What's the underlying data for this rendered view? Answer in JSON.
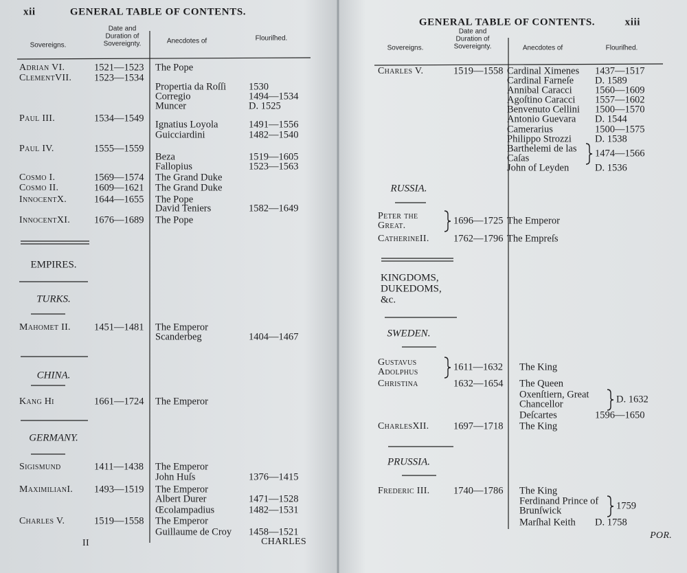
{
  "left_page": {
    "page_number": "xii",
    "running_head": "GENERAL TABLE OF CONTENTS.",
    "columns": [
      "Sovereigns.",
      [
        "Date and",
        "Duration of",
        "Sovereignty."
      ],
      "Anecdotes of",
      "Flouriſhed."
    ],
    "rows": [
      {
        "sovereign": "Adrian VI.",
        "date": "1521—1523",
        "anecdote": "The Pope"
      },
      {
        "sovereign": "ClementVII.",
        "date": "1523—1534"
      },
      {
        "anecdote": "Propertia da Roſſi",
        "flourished": "1530"
      },
      {
        "anecdote": "Corregio",
        "flourished": "1494—1534"
      },
      {
        "anecdote": "Muncer",
        "flourished": "D. 1525"
      },
      {
        "sovereign": "Paul III.",
        "date": "1534—1549"
      },
      {
        "anecdote": "Ignatius Loyola",
        "flourished": "1491—1556"
      },
      {
        "anecdote": "Guicciardini",
        "flourished": "1482—1540"
      },
      {
        "sovereign": "Paul IV.",
        "date": "1555—1559"
      },
      {
        "anecdote": "Beza",
        "flourished": "1519—1605"
      },
      {
        "anecdote": "Fallopius",
        "flourished": "1523—1563"
      },
      {
        "sovereign": "Cosmo I.",
        "date": "1569—1574",
        "anecdote": "The Grand Duke"
      },
      {
        "sovereign": "Cosmo II.",
        "date": "1609—1621",
        "anecdote": "The Grand Duke"
      },
      {
        "sovereign": "InnocentX.",
        "date": "1644—1655",
        "anecdote": "The Pope"
      },
      {
        "anecdote": "David Teniers",
        "flourished": "1582—1649"
      },
      {
        "sovereign": "InnocentXI.",
        "date": "1676—1689",
        "anecdote": "The Pope"
      },
      {
        "heading": "EMPIRES.",
        "italic": false
      },
      {
        "heading": "TURKS.",
        "italic": true
      },
      {
        "sovereign": "Mahomet II.",
        "date": "1451—1481",
        "anecdote": "The Emperor"
      },
      {
        "anecdote": "Scanderbeg",
        "flourished": "1404—1467"
      },
      {
        "heading": "CHINA.",
        "italic": true
      },
      {
        "sovereign": "Kang Hi",
        "date": "1661—1724",
        "anecdote": "The Emperor"
      },
      {
        "heading": "GERMANY.",
        "italic": true
      },
      {
        "sovereign": "Sigismund",
        "date": "1411—1438",
        "anecdote": "The Emperor"
      },
      {
        "anecdote": "John Huſs",
        "flourished": "1376—1415"
      },
      {
        "sovereign": "MaximilianI.",
        "date": "1493—1519",
        "anecdote": "The Emperor"
      },
      {
        "anecdote": "Albert Durer",
        "flourished": "1471—1528"
      },
      {
        "anecdote": "Œcolampadius",
        "flourished": "1482—1531"
      },
      {
        "sovereign": "Charles V.",
        "date": "1519—1558",
        "anecdote": "The Emperor"
      },
      {
        "anecdote": "Guillaume de Croy",
        "flourished": "1458—1521"
      }
    ],
    "signature": "II",
    "catchword": "CHARLES"
  },
  "right_page": {
    "page_number": "xiii",
    "running_head": "GENERAL TABLE OF CONTENTS.",
    "columns": [
      "Sovereigns.",
      [
        "Date and",
        "Duration of",
        "Sovereignty."
      ],
      "Anecdotes of",
      "Flouriſhed."
    ],
    "rows": [
      {
        "sovereign": "Charles V.",
        "date": "1519—1558",
        "anecdote": "Cardinal Ximenes",
        "flourished": "1437—1517"
      },
      {
        "anecdote": "Cardinal Farneſe",
        "flourished": "D. 1589"
      },
      {
        "anecdote": "Annibal Caracci",
        "flourished": "1560—1609"
      },
      {
        "anecdote": "Agoſtino Caracci",
        "flourished": "1557—1602"
      },
      {
        "anecdote": "Benvenuto Cellini",
        "flourished": "1500—1570"
      },
      {
        "anecdote": "Antonio Guevara",
        "flourished": "D. 1544"
      },
      {
        "anecdote": "Camerarius",
        "flourished": "1500—1575"
      },
      {
        "anecdote": "Philippo Strozzi",
        "flourished": "D. 1538"
      },
      {
        "anecdote": [
          "Barthelemi de las",
          "Caſas"
        ],
        "flourished": "1474—1566"
      },
      {
        "anecdote": "John of Leyden",
        "flourished": "D. 1536"
      },
      {
        "heading": "RUSSIA.",
        "italic": true
      },
      {
        "sovereign": [
          "Peter the",
          "Great."
        ],
        "date": "1696—1725",
        "anecdote": "The Emperor"
      },
      {
        "sovereign": "CatherineII.",
        "date": "1762—1796",
        "anecdote": "The Empreſs"
      },
      {
        "heading": [
          "KINGDOMS,",
          "DUKEDOMS,",
          "&c."
        ],
        "italic": false
      },
      {
        "heading": "SWEDEN.",
        "italic": true
      },
      {
        "sovereign": [
          "Gustavus",
          "Adolphus"
        ],
        "date": "1611—1632",
        "anecdote": "The King"
      },
      {
        "sovereign": "Christina",
        "date": "1632—1654",
        "anecdote": "The Queen"
      },
      {
        "anecdote": [
          "Oxenſtiern, Great",
          "Chancellor"
        ],
        "flourished": "D. 1632"
      },
      {
        "anecdote": "Deſcartes",
        "flourished": "1596—1650"
      },
      {
        "sovereign": "CharlesXII.",
        "date": "1697—1718",
        "anecdote": "The King"
      },
      {
        "heading": "PRUSSIA.",
        "italic": true
      },
      {
        "sovereign": "Frederic III.",
        "date": "1740—1786",
        "anecdote": "The King"
      },
      {
        "anecdote": [
          "Ferdinand Prince of",
          "Brunſwick"
        ],
        "flourished": "1759"
      },
      {
        "anecdote": "Marſhal Keith",
        "flourished": "D. 1758"
      }
    ],
    "catchword": "POR."
  }
}
